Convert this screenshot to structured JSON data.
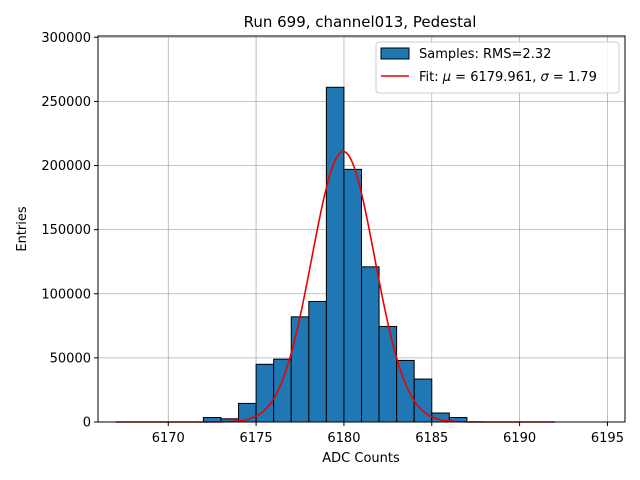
{
  "chart_data": {
    "type": "bar",
    "title": "Run 699, channel013, Pedestal",
    "xlabel": "ADC Counts",
    "ylabel": "Entries",
    "xlim": [
      6166,
      6196
    ],
    "ylim": [
      0,
      301000
    ],
    "xticks": [
      6170,
      6175,
      6180,
      6185,
      6190,
      6195
    ],
    "yticks": [
      0,
      50000,
      100000,
      150000,
      200000,
      250000,
      300000
    ],
    "grid": true,
    "legend_position": "top-right",
    "bin_width": 1,
    "bins": [
      {
        "x": 6172.5,
        "value": 3500
      },
      {
        "x": 6173.5,
        "value": 2500
      },
      {
        "x": 6174.5,
        "value": 14500
      },
      {
        "x": 6175.5,
        "value": 45000
      },
      {
        "x": 6176.5,
        "value": 49000
      },
      {
        "x": 6177.5,
        "value": 82000
      },
      {
        "x": 6178.5,
        "value": 94000
      },
      {
        "x": 6179.5,
        "value": 261000
      },
      {
        "x": 6180.5,
        "value": 197000
      },
      {
        "x": 6181.5,
        "value": 121000
      },
      {
        "x": 6182.5,
        "value": 74500
      },
      {
        "x": 6183.5,
        "value": 48000
      },
      {
        "x": 6184.5,
        "value": 33500
      },
      {
        "x": 6185.5,
        "value": 7000
      },
      {
        "x": 6186.5,
        "value": 3500
      }
    ],
    "fit": {
      "mu": 6179.961,
      "sigma": 1.79,
      "amplitude": 211000,
      "x_range": [
        6167,
        6192
      ]
    },
    "series": [
      {
        "name": "Samples: RMS=2.32",
        "color": "#1f77b4",
        "kind": "histogram"
      },
      {
        "name_prefix": "Fit: ",
        "mu_label": "μ",
        "mu_text": " = 6179.961, ",
        "sigma_label": "σ",
        "sigma_text": " = 1.79",
        "color": "#ee0000",
        "kind": "line"
      }
    ]
  }
}
